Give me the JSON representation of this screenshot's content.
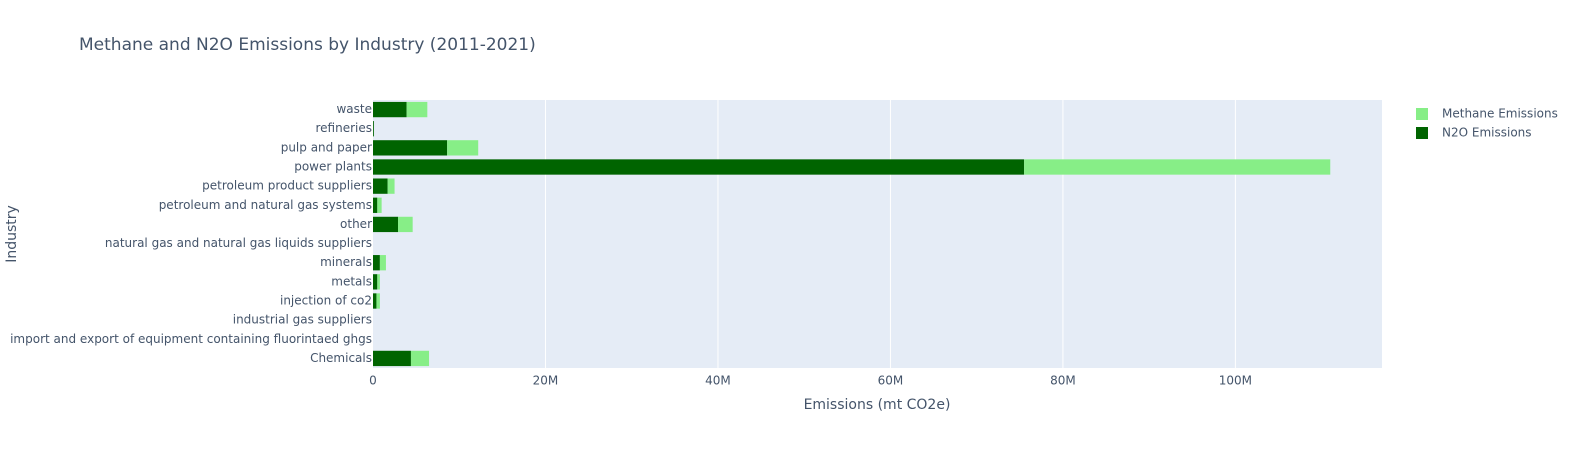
{
  "chart_data": {
    "type": "bar",
    "orientation": "horizontal",
    "barmode": "stack",
    "title": "Methane and N2O Emissions by Industry (2011-2021)",
    "xlabel": "Emissions (mt CO2e)",
    "ylabel": "Industry",
    "xlim": [
      0,
      117000000
    ],
    "xticks": [
      {
        "value": 0,
        "label": "0"
      },
      {
        "value": 20000000,
        "label": "20M"
      },
      {
        "value": 40000000,
        "label": "40M"
      },
      {
        "value": 60000000,
        "label": "60M"
      },
      {
        "value": 80000000,
        "label": "80M"
      },
      {
        "value": 100000000,
        "label": "100M"
      }
    ],
    "grid": true,
    "legend_position": "top-right",
    "categories": [
      "Chemicals",
      "import and export of equipment containing fluorintaed ghgs",
      "industrial gas suppliers",
      "injection of co2",
      "metals",
      "minerals",
      "natural gas and natural gas liquids suppliers",
      "other",
      "petroleum and natural gas systems",
      "petroleum product suppliers",
      "power plants",
      "pulp and paper",
      "refineries",
      "waste"
    ],
    "series": [
      {
        "name": "N2O Emissions",
        "color": "#006400",
        "values": [
          4400000,
          0,
          0,
          400000,
          500000,
          800000,
          0,
          2900000,
          500000,
          1700000,
          75500000,
          8600000,
          100000,
          3900000
        ]
      },
      {
        "name": "Methane Emissions",
        "color": "#87ee87",
        "values": [
          2100000,
          0,
          0,
          400000,
          300000,
          700000,
          0,
          1700000,
          500000,
          800000,
          35500000,
          3600000,
          0,
          2400000
        ]
      }
    ],
    "legend_order": [
      "Methane Emissions",
      "N2O Emissions"
    ]
  }
}
